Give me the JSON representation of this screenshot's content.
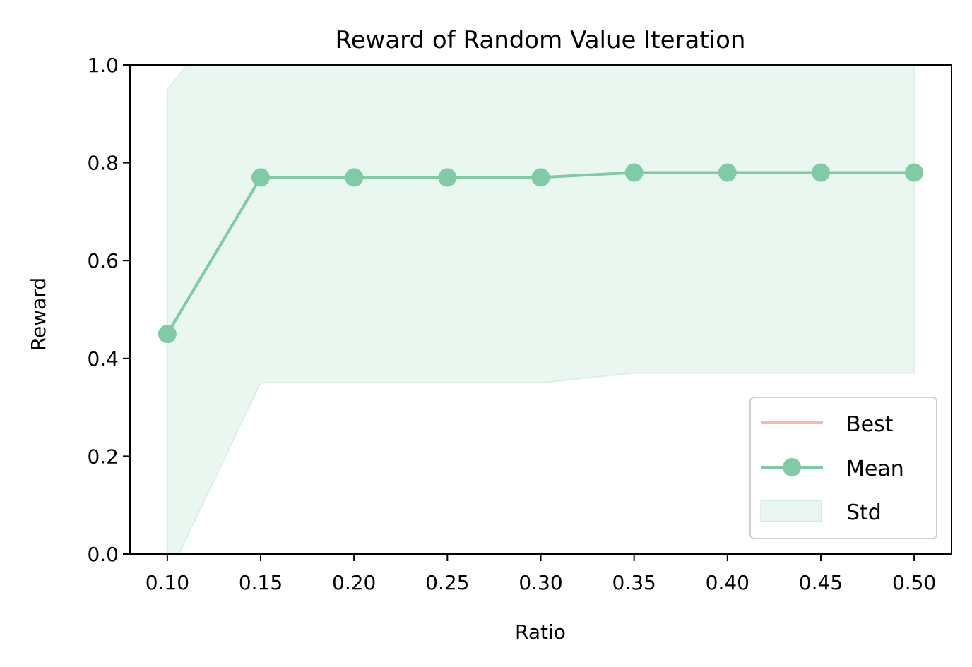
{
  "chart_data": {
    "type": "line",
    "title": "Reward of Random Value Iteration",
    "xlabel": "Ratio",
    "ylabel": "Reward",
    "x": [
      0.1,
      0.15,
      0.2,
      0.25,
      0.3,
      0.35,
      0.4,
      0.45,
      0.5
    ],
    "x_tick_labels": [
      "0.10",
      "0.15",
      "0.20",
      "0.25",
      "0.30",
      "0.35",
      "0.40",
      "0.45",
      "0.50"
    ],
    "y_tick_labels": [
      "0.0",
      "0.2",
      "0.4",
      "0.6",
      "0.8",
      "1.0"
    ],
    "xlim": [
      0.08,
      0.52
    ],
    "ylim": [
      0.0,
      1.0
    ],
    "grid": false,
    "legend_position": "lower right",
    "series": [
      {
        "name": "Best",
        "kind": "line",
        "color": "#ffb3ba",
        "values": [
          1.0,
          1.0,
          1.0,
          1.0,
          1.0,
          1.0,
          1.0,
          1.0,
          1.0
        ]
      },
      {
        "name": "Mean",
        "kind": "line-marker",
        "color": "#7ecba6",
        "values": [
          0.45,
          0.77,
          0.77,
          0.77,
          0.77,
          0.78,
          0.78,
          0.78,
          0.78
        ]
      },
      {
        "name": "Std",
        "kind": "band",
        "color": "#7ecba6",
        "upper": [
          0.95,
          1.19,
          1.19,
          1.19,
          1.19,
          1.19,
          1.19,
          1.19,
          1.19
        ],
        "lower": [
          -0.05,
          0.35,
          0.35,
          0.35,
          0.35,
          0.37,
          0.37,
          0.37,
          0.37
        ]
      }
    ]
  }
}
